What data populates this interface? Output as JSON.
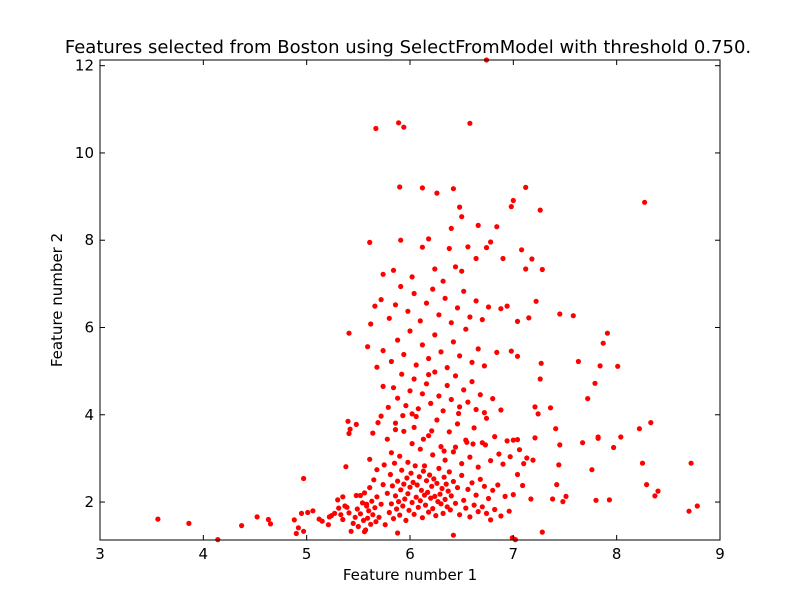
{
  "chart_data": {
    "type": "scatter",
    "title": "Features selected from Boston using SelectFromModel with threshold 0.750.",
    "xlabel": "Feature number 1",
    "ylabel": "Feature number 2",
    "xlim": [
      3,
      9
    ],
    "ylim": [
      1.13,
      12.13
    ],
    "xticks": [
      3,
      4,
      5,
      6,
      7,
      8,
      9
    ],
    "yticks": [
      2,
      4,
      6,
      8,
      10,
      12
    ],
    "grid": false,
    "marker_color": "#ff0000",
    "points": [
      [
        3.56,
        1.61
      ],
      [
        3.86,
        1.51
      ],
      [
        4.14,
        1.14
      ],
      [
        4.37,
        1.46
      ],
      [
        4.52,
        1.66
      ],
      [
        4.63,
        1.6
      ],
      [
        4.65,
        1.5
      ],
      [
        4.88,
        1.59
      ],
      [
        4.9,
        1.28
      ],
      [
        4.92,
        1.41
      ],
      [
        4.95,
        1.74
      ],
      [
        4.97,
        1.33
      ],
      [
        4.97,
        2.54
      ],
      [
        5.01,
        1.76
      ],
      [
        5.06,
        1.8
      ],
      [
        5.12,
        1.61
      ],
      [
        5.15,
        1.56
      ],
      [
        5.21,
        1.48
      ],
      [
        5.24,
        1.69
      ],
      [
        5.27,
        1.74
      ],
      [
        5.3,
        2.05
      ],
      [
        5.33,
        1.71
      ],
      [
        5.35,
        1.6
      ],
      [
        5.37,
        1.91
      ],
      [
        5.39,
        1.88
      ],
      [
        5.41,
        1.75
      ],
      [
        5.43,
        1.33
      ],
      [
        5.45,
        1.51
      ],
      [
        5.47,
        1.65
      ],
      [
        5.48,
        2.15
      ],
      [
        5.49,
        1.84
      ],
      [
        5.5,
        1.44
      ],
      [
        5.52,
        1.73
      ],
      [
        5.54,
        1.98
      ],
      [
        5.55,
        1.58
      ],
      [
        5.56,
        2.21
      ],
      [
        5.57,
        1.36
      ],
      [
        5.58,
        1.91
      ],
      [
        5.59,
        1.63
      ],
      [
        5.6,
        1.8
      ],
      [
        5.61,
        2.33
      ],
      [
        5.62,
        1.49
      ],
      [
        5.63,
        2.02
      ],
      [
        5.64,
        1.71
      ],
      [
        5.65,
        2.51
      ],
      [
        5.66,
        1.87
      ],
      [
        5.67,
        1.55
      ],
      [
        5.68,
        2.12
      ],
      [
        5.7,
        1.65
      ],
      [
        5.72,
        1.95
      ],
      [
        5.74,
        2.4
      ],
      [
        5.76,
        1.48
      ],
      [
        5.78,
        2.2
      ],
      [
        5.8,
        1.76
      ],
      [
        5.81,
        2.63
      ],
      [
        5.82,
        1.96
      ],
      [
        5.83,
        2.37
      ],
      [
        5.84,
        1.62
      ],
      [
        5.85,
        2.89
      ],
      [
        5.86,
        2.14
      ],
      [
        5.87,
        1.84
      ],
      [
        5.88,
        2.48
      ],
      [
        5.89,
        2.01
      ],
      [
        5.9,
        1.7
      ],
      [
        5.91,
        2.28
      ],
      [
        5.92,
        2.73
      ],
      [
        5.93,
        1.91
      ],
      [
        5.94,
        2.41
      ],
      [
        5.95,
        2.07
      ],
      [
        5.96,
        1.58
      ],
      [
        5.97,
        2.55
      ],
      [
        5.98,
        2.19
      ],
      [
        5.99,
        1.81
      ],
      [
        6.0,
        2.34
      ],
      [
        6.01,
        2.66
      ],
      [
        6.02,
        1.99
      ],
      [
        6.03,
        2.45
      ],
      [
        6.04,
        1.72
      ],
      [
        6.05,
        2.83
      ],
      [
        6.06,
        2.11
      ],
      [
        6.07,
        2.39
      ],
      [
        6.08,
        1.88
      ],
      [
        6.09,
        2.58
      ],
      [
        6.1,
        2.03
      ],
      [
        6.11,
        2.27
      ],
      [
        6.12,
        1.64
      ],
      [
        6.13,
        2.71
      ],
      [
        6.14,
        2.16
      ],
      [
        6.15,
        1.93
      ],
      [
        6.16,
        2.49
      ],
      [
        6.17,
        2.22
      ],
      [
        6.18,
        1.77
      ],
      [
        6.19,
        2.62
      ],
      [
        6.2,
        2.09
      ],
      [
        6.21,
        2.36
      ],
      [
        6.22,
        1.85
      ],
      [
        6.23,
        2.53
      ],
      [
        6.24,
        2.13
      ],
      [
        6.25,
        1.69
      ],
      [
        6.26,
        2.43
      ],
      [
        6.27,
        2.01
      ],
      [
        6.28,
        2.77
      ],
      [
        6.29,
        2.18
      ],
      [
        6.3,
        1.96
      ],
      [
        6.31,
        2.31
      ],
      [
        6.32,
        1.74
      ],
      [
        6.33,
        2.57
      ],
      [
        6.34,
        2.06
      ],
      [
        6.35,
        2.41
      ],
      [
        6.36,
        1.89
      ],
      [
        6.37,
        2.25
      ],
      [
        6.38,
        2.69
      ],
      [
        6.39,
        1.82
      ],
      [
        6.4,
        2.14
      ],
      [
        6.42,
        2.47
      ],
      [
        6.44,
        1.97
      ],
      [
        6.46,
        2.33
      ],
      [
        6.48,
        1.71
      ],
      [
        6.5,
        2.61
      ],
      [
        6.52,
        2.04
      ],
      [
        6.54,
        1.86
      ],
      [
        6.56,
        2.29
      ],
      [
        6.58,
        1.66
      ],
      [
        6.6,
        2.44
      ],
      [
        6.62,
        1.93
      ],
      [
        6.64,
        2.16
      ],
      [
        6.66,
        1.78
      ],
      [
        6.68,
        2.52
      ],
      [
        6.7,
        1.89
      ],
      [
        6.72,
        2.36
      ],
      [
        6.74,
        1.74
      ],
      [
        6.76,
        2.08
      ],
      [
        6.78,
        1.59
      ],
      [
        6.8,
        2.27
      ],
      [
        6.82,
        1.83
      ],
      [
        6.85,
        2.39
      ],
      [
        6.88,
        1.68
      ],
      [
        6.92,
        2.13
      ],
      [
        6.96,
        1.79
      ],
      [
        7.0,
        2.17
      ],
      [
        5.56,
        1.32
      ],
      [
        5.88,
        1.29
      ],
      [
        6.42,
        1.24
      ],
      [
        6.99,
        1.18
      ],
      [
        7.02,
        1.14
      ],
      [
        7.28,
        1.31
      ],
      [
        5.61,
        2.98
      ],
      [
        5.64,
        3.58
      ],
      [
        5.68,
        2.74
      ],
      [
        5.72,
        3.97
      ],
      [
        5.75,
        2.85
      ],
      [
        5.78,
        3.44
      ],
      [
        5.82,
        3.13
      ],
      [
        5.86,
        3.81
      ],
      [
        5.9,
        3.05
      ],
      [
        5.94,
        3.62
      ],
      [
        5.98,
        2.91
      ],
      [
        6.02,
        3.34
      ],
      [
        6.06,
        3.96
      ],
      [
        6.1,
        3.21
      ],
      [
        6.14,
        2.83
      ],
      [
        6.18,
        3.52
      ],
      [
        6.22,
        3.08
      ],
      [
        6.26,
        3.88
      ],
      [
        6.3,
        3.27
      ],
      [
        6.34,
        2.96
      ],
      [
        6.38,
        3.61
      ],
      [
        6.42,
        3.15
      ],
      [
        6.46,
        3.79
      ],
      [
        6.5,
        2.88
      ],
      [
        6.54,
        3.42
      ],
      [
        6.58,
        3.03
      ],
      [
        6.62,
        3.7
      ],
      [
        6.66,
        2.8
      ],
      [
        6.7,
        3.36
      ],
      [
        6.74,
        3.92
      ],
      [
        6.78,
        2.95
      ],
      [
        6.82,
        3.5
      ],
      [
        6.86,
        3.1
      ],
      [
        6.9,
        2.87
      ],
      [
        6.94,
        3.4
      ],
      [
        7.0,
        3.42
      ],
      [
        7.04,
        3.43
      ],
      [
        7.1,
        2.88
      ],
      [
        5.69,
        3.82
      ],
      [
        5.86,
        3.66
      ],
      [
        5.93,
        3.98
      ],
      [
        6.04,
        3.71
      ],
      [
        6.13,
        3.44
      ],
      [
        6.21,
        3.63
      ],
      [
        6.33,
        3.17
      ],
      [
        6.44,
        3.26
      ],
      [
        6.55,
        3.37
      ],
      [
        6.61,
        3.33
      ],
      [
        6.73,
        3.31
      ],
      [
        5.79,
        4.17
      ],
      [
        5.84,
        4.62
      ],
      [
        5.88,
        4.38
      ],
      [
        5.92,
        4.93
      ],
      [
        5.96,
        4.21
      ],
      [
        6.0,
        4.55
      ],
      [
        6.04,
        4.82
      ],
      [
        6.08,
        4.14
      ],
      [
        6.12,
        4.48
      ],
      [
        6.16,
        4.71
      ],
      [
        6.2,
        4.26
      ],
      [
        6.24,
        4.98
      ],
      [
        6.28,
        4.43
      ],
      [
        6.32,
        4.09
      ],
      [
        6.36,
        4.67
      ],
      [
        6.4,
        4.35
      ],
      [
        6.44,
        4.89
      ],
      [
        6.48,
        4.18
      ],
      [
        6.52,
        4.57
      ],
      [
        6.56,
        4.29
      ],
      [
        6.6,
        4.76
      ],
      [
        6.64,
        4.12
      ],
      [
        6.68,
        4.46
      ],
      [
        6.72,
        4.05
      ],
      [
        6.8,
        4.37
      ],
      [
        6.88,
        4.11
      ],
      [
        5.74,
        4.65
      ],
      [
        6.02,
        4.02
      ],
      [
        6.18,
        4.92
      ],
      [
        6.47,
        4.03
      ],
      [
        5.59,
        5.56
      ],
      [
        5.68,
        5.09
      ],
      [
        5.74,
        5.47
      ],
      [
        5.82,
        5.22
      ],
      [
        5.88,
        5.71
      ],
      [
        5.94,
        5.38
      ],
      [
        6.0,
        5.92
      ],
      [
        6.06,
        5.14
      ],
      [
        6.12,
        5.6
      ],
      [
        6.18,
        5.29
      ],
      [
        6.24,
        5.83
      ],
      [
        6.3,
        5.44
      ],
      [
        6.36,
        5.08
      ],
      [
        6.42,
        5.67
      ],
      [
        6.48,
        5.35
      ],
      [
        6.54,
        5.96
      ],
      [
        6.6,
        5.2
      ],
      [
        6.66,
        5.51
      ],
      [
        6.72,
        5.12
      ],
      [
        6.84,
        5.43
      ],
      [
        6.98,
        5.46
      ],
      [
        7.04,
        5.34
      ],
      [
        5.62,
        6.08
      ],
      [
        5.66,
        6.49
      ],
      [
        5.72,
        6.64
      ],
      [
        5.8,
        6.21
      ],
      [
        5.86,
        6.52
      ],
      [
        5.91,
        6.94
      ],
      [
        5.98,
        6.37
      ],
      [
        6.04,
        6.78
      ],
      [
        6.1,
        6.15
      ],
      [
        6.16,
        6.56
      ],
      [
        6.22,
        6.88
      ],
      [
        6.28,
        6.29
      ],
      [
        6.34,
        6.67
      ],
      [
        6.4,
        6.11
      ],
      [
        6.46,
        6.45
      ],
      [
        6.52,
        6.83
      ],
      [
        6.58,
        6.24
      ],
      [
        6.64,
        6.61
      ],
      [
        6.7,
        6.18
      ],
      [
        6.76,
        6.47
      ],
      [
        6.88,
        6.43
      ],
      [
        6.94,
        6.49
      ],
      [
        7.04,
        6.14
      ],
      [
        5.61,
        7.95
      ],
      [
        5.74,
        7.22
      ],
      [
        5.84,
        7.31
      ],
      [
        5.91,
        8.0
      ],
      [
        6.02,
        7.16
      ],
      [
        6.12,
        7.84
      ],
      [
        6.18,
        8.03
      ],
      [
        6.24,
        7.34
      ],
      [
        6.32,
        7.06
      ],
      [
        6.38,
        7.81
      ],
      [
        6.44,
        7.39
      ],
      [
        6.5,
        7.29
      ],
      [
        6.56,
        7.85
      ],
      [
        6.64,
        7.58
      ],
      [
        6.74,
        7.83
      ],
      [
        6.78,
        7.96
      ],
      [
        6.9,
        7.58
      ],
      [
        6.98,
        8.77
      ],
      [
        7.08,
        7.78
      ],
      [
        7.12,
        7.34
      ],
      [
        7.18,
        7.57
      ],
      [
        7.28,
        7.33
      ],
      [
        6.4,
        8.27
      ],
      [
        6.48,
        8.76
      ],
      [
        6.5,
        8.54
      ],
      [
        6.66,
        8.34
      ],
      [
        6.84,
        8.31
      ],
      [
        7.0,
        8.91
      ],
      [
        7.26,
        8.69
      ],
      [
        5.9,
        9.22
      ],
      [
        6.12,
        9.2
      ],
      [
        6.26,
        9.08
      ],
      [
        6.42,
        9.18
      ],
      [
        7.12,
        9.21
      ],
      [
        5.67,
        10.56
      ],
      [
        5.89,
        10.69
      ],
      [
        5.94,
        10.59
      ],
      [
        6.58,
        10.68
      ],
      [
        6.74,
        12.13
      ],
      [
        5.22,
        1.66
      ],
      [
        5.31,
        1.86
      ],
      [
        5.35,
        2.12
      ],
      [
        5.38,
        2.81
      ],
      [
        5.41,
        3.57
      ],
      [
        5.42,
        3.67
      ],
      [
        5.4,
        3.85
      ],
      [
        5.41,
        5.87
      ],
      [
        5.48,
        3.78
      ],
      [
        5.52,
        2.15
      ],
      [
        5.58,
        1.95
      ],
      [
        7.04,
        2.63
      ],
      [
        7.09,
        2.38
      ],
      [
        7.17,
        2.07
      ],
      [
        7.19,
        2.96
      ],
      [
        7.21,
        4.18
      ],
      [
        7.24,
        4.02
      ],
      [
        7.26,
        4.82
      ],
      [
        7.27,
        5.18
      ],
      [
        7.22,
        6.6
      ],
      [
        7.15,
        6.22
      ],
      [
        7.36,
        4.16
      ],
      [
        7.41,
        3.68
      ],
      [
        7.44,
        2.85
      ],
      [
        7.45,
        6.31
      ],
      [
        7.48,
        2.01
      ],
      [
        7.51,
        2.13
      ],
      [
        7.38,
        2.07
      ],
      [
        7.42,
        2.4
      ],
      [
        7.58,
        6.27
      ],
      [
        7.63,
        5.22
      ],
      [
        7.67,
        3.36
      ],
      [
        7.72,
        4.37
      ],
      [
        7.76,
        2.74
      ],
      [
        7.8,
        2.04
      ],
      [
        7.82,
        3.49
      ],
      [
        7.84,
        5.12
      ],
      [
        7.87,
        5.64
      ],
      [
        7.91,
        5.87
      ],
      [
        7.93,
        2.05
      ],
      [
        8.01,
        5.11
      ],
      [
        8.04,
        3.49
      ],
      [
        8.25,
        2.89
      ],
      [
        8.27,
        8.87
      ],
      [
        8.29,
        2.4
      ],
      [
        8.33,
        3.82
      ],
      [
        8.37,
        2.14
      ],
      [
        8.4,
        2.25
      ],
      [
        8.7,
        1.79
      ],
      [
        8.72,
        2.89
      ],
      [
        8.78,
        1.91
      ],
      [
        6.97,
        3.04
      ],
      [
        7.06,
        3.2
      ],
      [
        7.13,
        3.01
      ],
      [
        7.21,
        3.47
      ],
      [
        7.45,
        3.31
      ],
      [
        7.79,
        4.72
      ],
      [
        7.82,
        3.46
      ],
      [
        7.97,
        3.25
      ],
      [
        8.22,
        3.68
      ]
    ]
  }
}
